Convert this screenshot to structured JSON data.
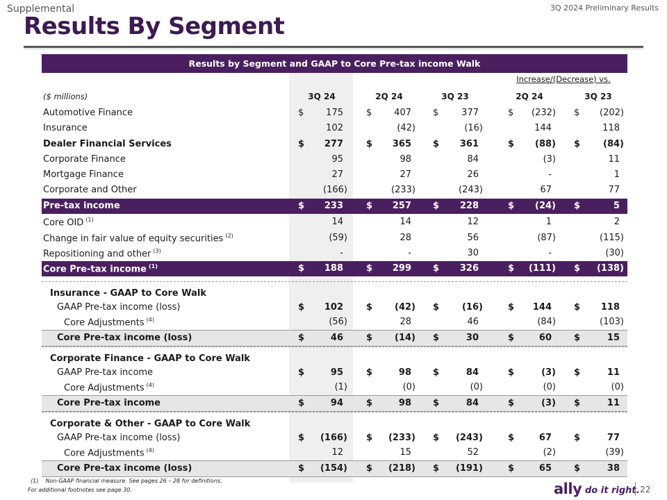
{
  "header": {
    "supplemental": "Supplemental",
    "top_right": "3Q 2024 Preliminary Results",
    "title": "Results By Segment"
  },
  "table": {
    "banner": "Results by Segment and GAAP to Core Pre-tax income Walk",
    "increase_label": "Increase/(Decrease) vs.",
    "units": "($ millions)",
    "columns": [
      "3Q 24",
      "2Q 24",
      "3Q 23",
      "2Q 24",
      "3Q 23"
    ],
    "rows": [
      {
        "label": "Automotive Finance",
        "style": "plain",
        "dollar": true,
        "values": [
          "175",
          "407",
          "377",
          "(232)",
          "(202)"
        ]
      },
      {
        "label": "Insurance",
        "style": "plain",
        "dollar": false,
        "values": [
          "102",
          "(42)",
          "(16)",
          "144",
          "118"
        ]
      },
      {
        "label": "Dealer Financial Services",
        "style": "bold",
        "dollar": true,
        "values": [
          "277",
          "365",
          "361",
          "(88)",
          "(84)"
        ]
      },
      {
        "label": "Corporate Finance",
        "style": "plain",
        "dollar": false,
        "values": [
          "95",
          "98",
          "84",
          "(3)",
          "11"
        ]
      },
      {
        "label": "Mortgage Finance",
        "style": "plain",
        "dollar": false,
        "values": [
          "27",
          "27",
          "26",
          "-",
          "1"
        ]
      },
      {
        "label": "Corporate and Other",
        "style": "plain",
        "dollar": false,
        "values": [
          "(166)",
          "(233)",
          "(243)",
          "67",
          "77"
        ]
      },
      {
        "label": "Pre-tax income",
        "style": "total",
        "dollar": true,
        "values": [
          "233",
          "257",
          "228",
          "(24)",
          "5"
        ]
      },
      {
        "label": "Core OID",
        "sup": "(1)",
        "style": "plain",
        "dollar": false,
        "values": [
          "14",
          "14",
          "12",
          "1",
          "2"
        ]
      },
      {
        "label": "Change in fair value of equity securities",
        "sup": "(2)",
        "style": "plain",
        "dollar": false,
        "values": [
          "(59)",
          "28",
          "56",
          "(87)",
          "(115)"
        ]
      },
      {
        "label": "Repositioning and other",
        "sup": "(3)",
        "style": "plain",
        "dollar": false,
        "values": [
          "-",
          "-",
          "30",
          "-",
          "(30)"
        ]
      },
      {
        "label": "Core Pre-tax income",
        "sup": "(1)",
        "style": "total",
        "dollar": true,
        "values": [
          "188",
          "299",
          "326",
          "(111)",
          "(138)"
        ]
      }
    ],
    "walks": [
      {
        "title": "Insurance - GAAP to Core Walk",
        "gaap_label": "GAAP Pre-tax income (loss)",
        "gaap_values": [
          "102",
          "(42)",
          "(16)",
          "144",
          "118"
        ],
        "adj_label": "Core Adjustments",
        "adj_sup": "(4)",
        "adj_values": [
          "(56)",
          "28",
          "46",
          "(84)",
          "(103)"
        ],
        "core_label": "Core Pre-tax income (loss)",
        "core_values": [
          "46",
          "(14)",
          "30",
          "60",
          "15"
        ]
      },
      {
        "title": "Corporate Finance - GAAP to Core Walk",
        "gaap_label": "GAAP Pre-tax income",
        "gaap_values": [
          "95",
          "98",
          "84",
          "(3)",
          "11"
        ],
        "adj_label": "Core Adjustments",
        "adj_sup": "(4)",
        "adj_values": [
          "(1)",
          "(0)",
          "(0)",
          "(0)",
          "(0)"
        ],
        "core_label": "Core Pre-tax income",
        "core_values": [
          "94",
          "98",
          "84",
          "(3)",
          "11"
        ]
      },
      {
        "title": "Corporate & Other - GAAP to Core Walk",
        "gaap_label": "GAAP Pre-tax income (loss)",
        "gaap_values": [
          "(166)",
          "(233)",
          "(243)",
          "67",
          "77"
        ],
        "adj_label": "Core Adjustments",
        "adj_sup": "(4)",
        "adj_values": [
          "12",
          "15",
          "52",
          "(2)",
          "(39)"
        ],
        "core_label": "Core Pre-tax income (loss)",
        "core_values": [
          "(154)",
          "(218)",
          "(191)",
          "65",
          "38"
        ]
      }
    ]
  },
  "footer": {
    "note1_marker": "(1)",
    "note1": "Non-GAAP financial measure. See pages 26 – 28 for definitions.",
    "note2": "For additional footnotes see page 30.",
    "logo": "ally",
    "tagline": "do it right.",
    "page_number": "22"
  }
}
